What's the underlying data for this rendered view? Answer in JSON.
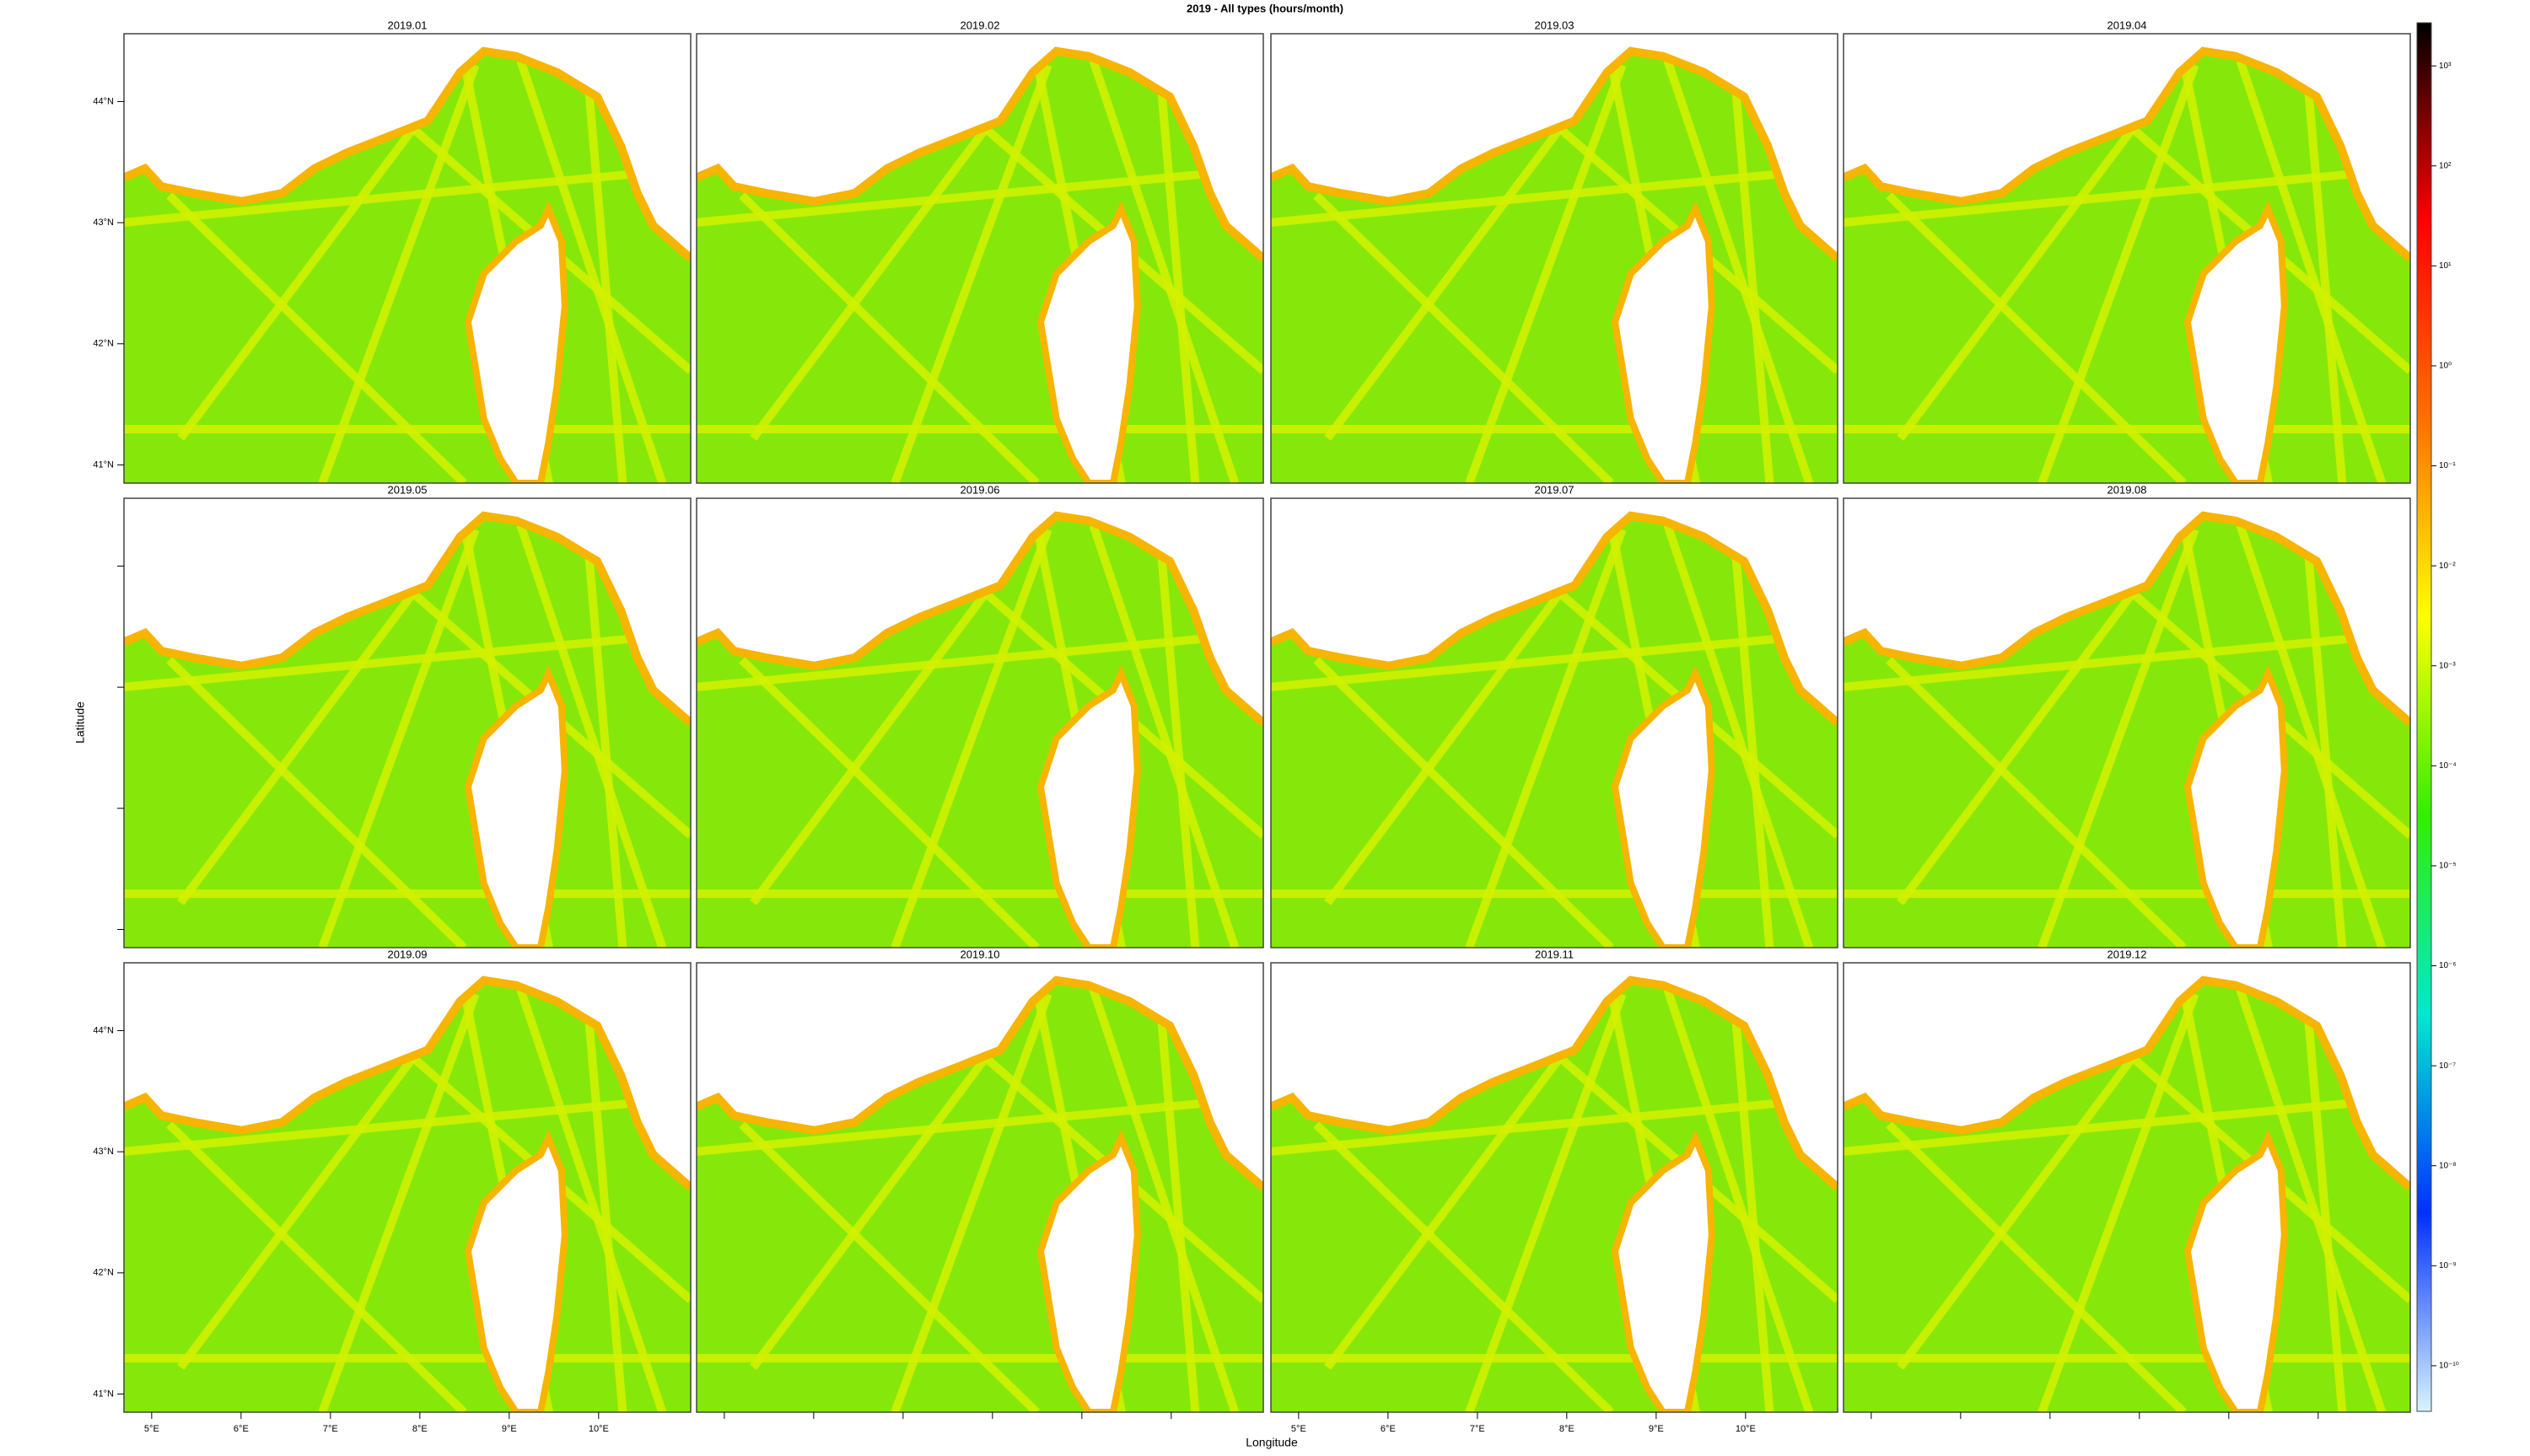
{
  "chart_data": {
    "type": "map",
    "title": "2019 - All types (hours/month)",
    "panels": [
      "2019.01",
      "2019.02",
      "2019.03",
      "2019.04",
      "2019.05",
      "2019.06",
      "2019.07",
      "2019.08",
      "2019.09",
      "2019.10",
      "2019.11",
      "2019.12"
    ],
    "x_label": "Longitude",
    "y_label": "Latitude",
    "xlim": [
      4.69,
      11.03
    ],
    "ylim": [
      40.85,
      44.56
    ],
    "xticks": [
      {
        "value": 5,
        "label": "5°E"
      },
      {
        "value": 6,
        "label": "6°E"
      },
      {
        "value": 7,
        "label": "7°E"
      },
      {
        "value": 8,
        "label": "8°E"
      },
      {
        "value": 9,
        "label": "9°E"
      },
      {
        "value": 10,
        "label": "10°E"
      }
    ],
    "yticks": [
      {
        "value": 41,
        "label": "41°N"
      },
      {
        "value": 42,
        "label": "42°N"
      },
      {
        "value": 43,
        "label": "43°N"
      },
      {
        "value": 44,
        "label": "44°N"
      }
    ],
    "colorbar": {
      "log": true,
      "lim": [
        3.5e-11,
        2700
      ],
      "colors": [
        "#d8f4ff",
        "#0030ff",
        "#00e8d0",
        "#33ee00",
        "#ffff00",
        "#ff7000",
        "#ff0000",
        "#000000"
      ],
      "ticks": [
        {
          "value": 1000,
          "label": "10³"
        },
        {
          "value": 100,
          "label": "10²"
        },
        {
          "value": 10,
          "label": "10¹"
        },
        {
          "value": 1,
          "label": "10⁰"
        },
        {
          "value": 0.1,
          "label": "10⁻¹"
        },
        {
          "value": 0.01,
          "label": "10⁻²"
        },
        {
          "value": 0.001,
          "label": "10⁻³"
        },
        {
          "value": 0.0001,
          "label": "10⁻⁴"
        },
        {
          "value": 1e-05,
          "label": "10⁻⁵"
        },
        {
          "value": 1e-06,
          "label": "10⁻⁶"
        },
        {
          "value": 1e-07,
          "label": "10⁻⁷"
        },
        {
          "value": 1e-08,
          "label": "10⁻⁸"
        },
        {
          "value": 1e-09,
          "label": "10⁻⁹"
        },
        {
          "value": 1e-10,
          "label": "10⁻¹⁰"
        }
      ]
    }
  }
}
